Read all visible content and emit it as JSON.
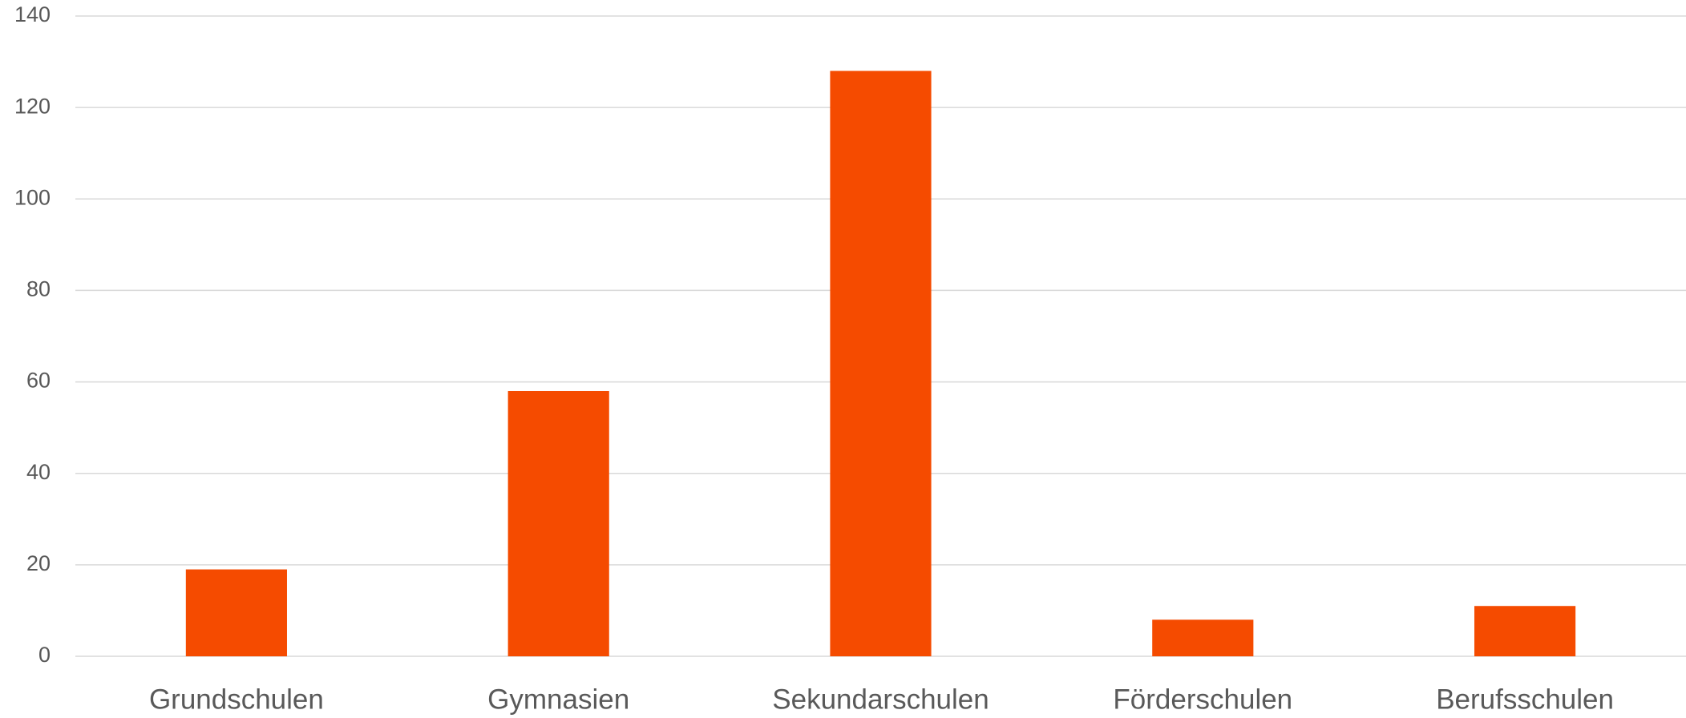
{
  "chart_data": {
    "type": "bar",
    "categories": [
      "Grundschulen",
      "Gymnasien",
      "Sekundarschulen",
      "Förderschulen",
      "Berufsschulen"
    ],
    "values": [
      19,
      58,
      128,
      8,
      11
    ],
    "color": "#f54b00",
    "ylim": [
      0,
      140
    ],
    "yticks": [
      0,
      20,
      40,
      60,
      80,
      100,
      120,
      140
    ],
    "grid": true
  }
}
